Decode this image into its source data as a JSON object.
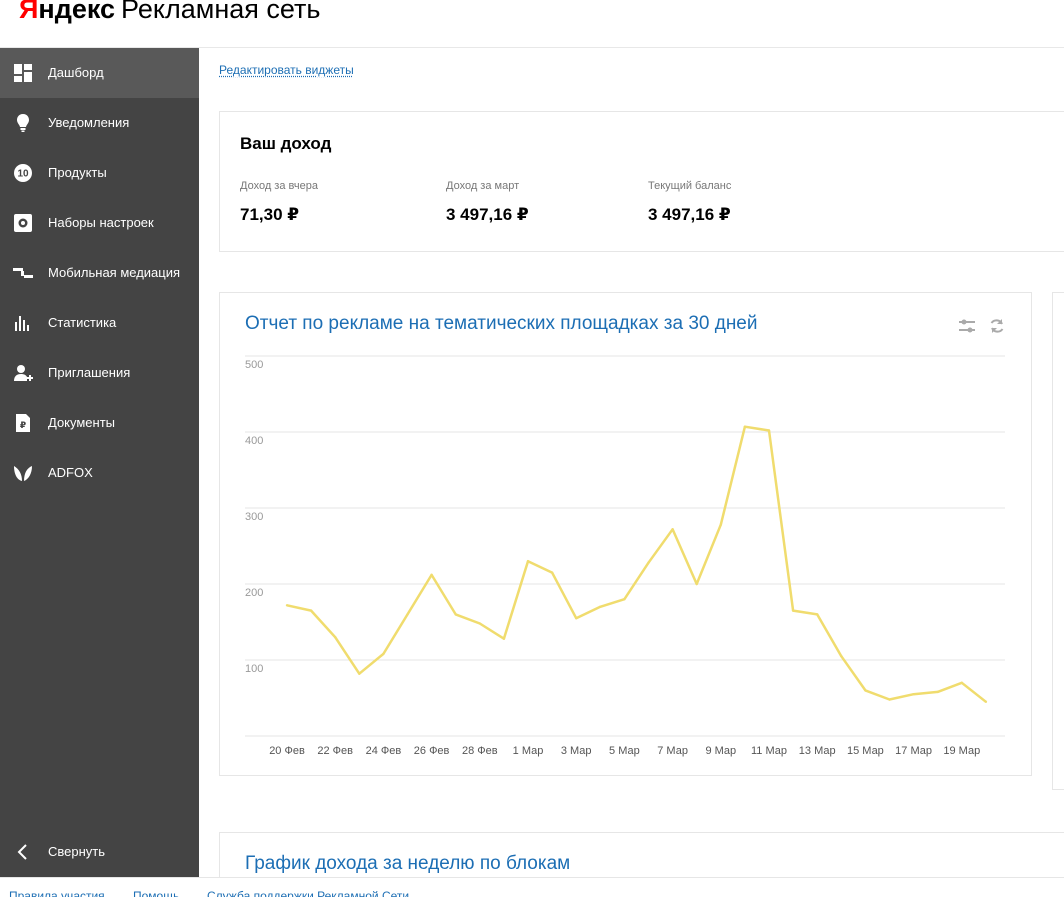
{
  "logo": {
    "first_letter": "Я",
    "brand_rest": "ндекс",
    "service": "Рекламная сеть"
  },
  "sidebar": {
    "items": [
      {
        "label": "Дашборд",
        "icon": "dashboard-icon",
        "active": true
      },
      {
        "label": "Уведомления",
        "icon": "bulb-icon"
      },
      {
        "label": "Продукты",
        "icon": "products-icon"
      },
      {
        "label": "Наборы настроек",
        "icon": "settings-icon"
      },
      {
        "label": "Мобильная медиация",
        "icon": "mediation-icon"
      },
      {
        "label": "Статистика",
        "icon": "statistics-icon"
      },
      {
        "label": "Приглашения",
        "icon": "invite-icon"
      },
      {
        "label": "Документы",
        "icon": "document-icon"
      },
      {
        "label": "ADFOX",
        "icon": "adfox-icon"
      }
    ],
    "collapse_label": "Свернуть"
  },
  "main": {
    "edit_widgets": "Редактировать виджеты",
    "income": {
      "title": "Ваш доход",
      "metrics": [
        {
          "label": "Доход за вчера",
          "value": "71,30 ₽"
        },
        {
          "label": "Доход за март",
          "value": "3 497,16 ₽"
        },
        {
          "label": "Текущий баланс",
          "value": "3 497,16 ₽"
        }
      ]
    },
    "report": {
      "title": "Отчет по рекламе на тематических площадках за 30 дней"
    },
    "weekly": {
      "title": "График дохода за неделю по блокам"
    }
  },
  "chart_data": {
    "type": "line",
    "title": "Отчет по рекламе на тематических площадках за 30 дней",
    "x_tick_labels": [
      "20 Фев",
      "22 Фев",
      "24 Фев",
      "26 Фев",
      "28 Фев",
      "1 Мар",
      "3 Мар",
      "5 Мар",
      "7 Мар",
      "9 Мар",
      "11 Мар",
      "13 Мар",
      "15 Мар",
      "17 Мар",
      "19 Мар"
    ],
    "y_ticks": [
      100,
      200,
      300,
      400,
      500
    ],
    "ylim": [
      0,
      500
    ],
    "grid": true,
    "series": [
      {
        "color": "#f0dc6e",
        "values": [
          172,
          165,
          130,
          82,
          108,
          160,
          212,
          160,
          148,
          128,
          230,
          215,
          155,
          170,
          180,
          228,
          272,
          200,
          278,
          407,
          402,
          165,
          160,
          105,
          60,
          48,
          55,
          58,
          70,
          45
        ]
      }
    ]
  },
  "footer": {
    "links": [
      "Правила участия",
      "Помощь",
      "Служба поддержки Рекламной Сети"
    ]
  }
}
